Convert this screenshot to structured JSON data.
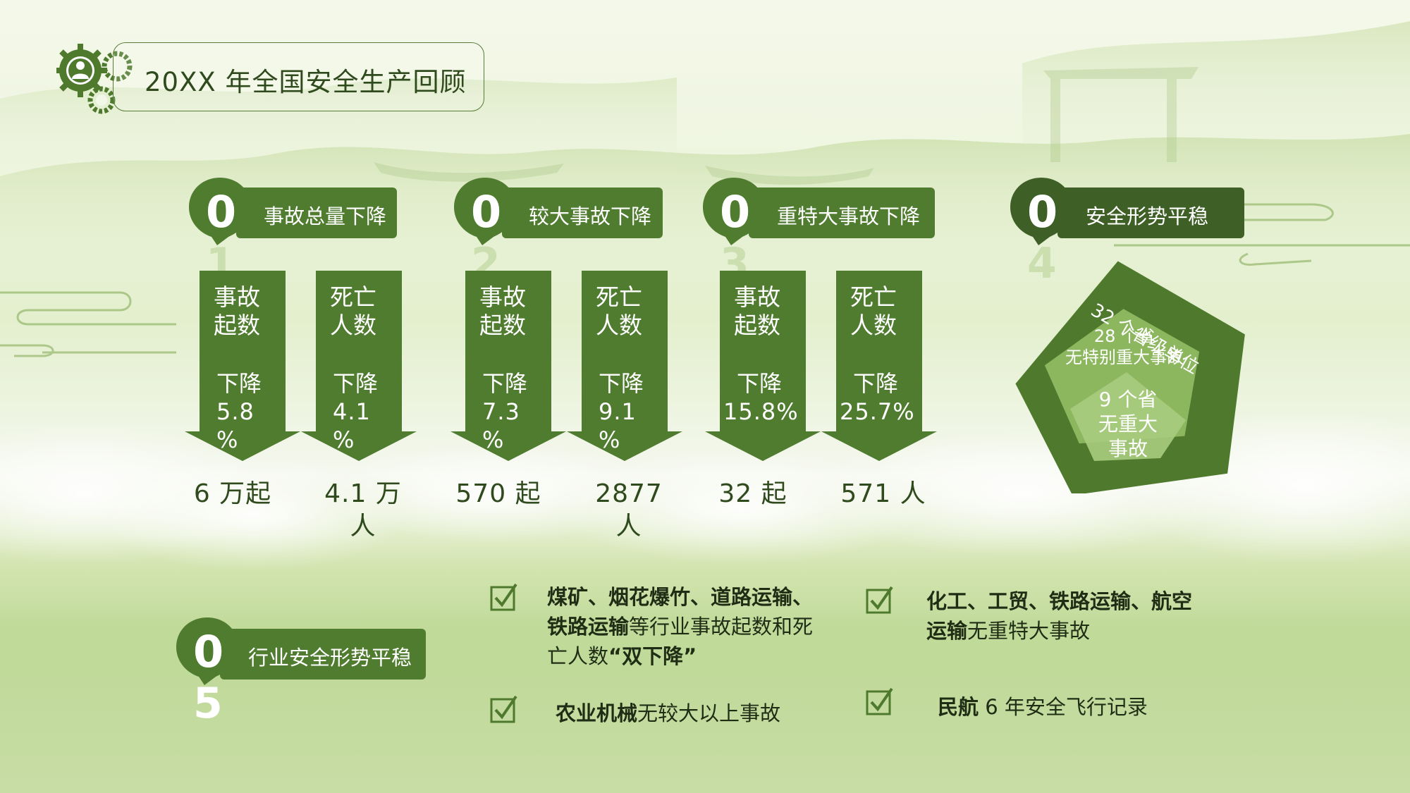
{
  "header": {
    "title": "20XX 年全国安全生产回顾"
  },
  "sections": [
    {
      "num": "0",
      "num2": "1",
      "label": "事故总量下降",
      "cards": [
        {
          "title": [
            "事故",
            "起数"
          ],
          "sub": "下降",
          "value": [
            "5.8",
            "%"
          ],
          "stat": [
            "6 万起"
          ]
        },
        {
          "title": [
            "死亡",
            "人数"
          ],
          "sub": "下降",
          "value": [
            "4.1",
            "%"
          ],
          "stat": [
            "4.1 万",
            "人"
          ]
        }
      ]
    },
    {
      "num": "0",
      "num2": "2",
      "label": "较大事故下降",
      "cards": [
        {
          "title": [
            "事故",
            "起数"
          ],
          "sub": "下降",
          "value": [
            "7.3",
            "%"
          ],
          "stat": [
            "570 起"
          ]
        },
        {
          "title": [
            "死亡",
            "人数"
          ],
          "sub": "下降",
          "value": [
            "9.1",
            "%"
          ],
          "stat": [
            "2877",
            "人"
          ]
        }
      ]
    },
    {
      "num": "0",
      "num2": "3",
      "label": "重特大事故下降",
      "cards": [
        {
          "title": [
            "事故",
            "起数"
          ],
          "sub": "下降",
          "value": [
            "15.8%"
          ],
          "stat": [
            "32 起"
          ]
        },
        {
          "title": [
            "死亡",
            "人数"
          ],
          "sub": "下降",
          "value": [
            "25.7%"
          ],
          "stat": [
            "571 人"
          ]
        }
      ]
    },
    {
      "num": "0",
      "num2": "4",
      "label": "安全形势平稳",
      "pentagon": {
        "outer": "32 个省级单位",
        "middle": [
          "28 个省",
          "无特别重大事故"
        ],
        "inner": [
          "9 个省",
          "无重大",
          "事故"
        ]
      }
    },
    {
      "num": "0",
      "num2": "5",
      "label": "行业安全形势平稳"
    }
  ],
  "industry": [
    {
      "bold": "煤矿、烟花爆竹、道路运输、",
      "bold2": "铁路运输",
      "rest": "等行业事故起数和死",
      "line3": "亡人数",
      "bold3": "“双下降”"
    },
    {
      "bold": "化工、工贸、铁路运输、航空",
      "bold2": "运输",
      "rest": "无重特大事故"
    },
    {
      "bold": "农业机械",
      "rest": "无较大以上事故"
    },
    {
      "bold": "民航",
      "rest": " 6 年安全飞行记录"
    }
  ],
  "colors": {
    "primary": "#507c30",
    "dark": "#3e5f26",
    "text": "#2f4a1c"
  }
}
